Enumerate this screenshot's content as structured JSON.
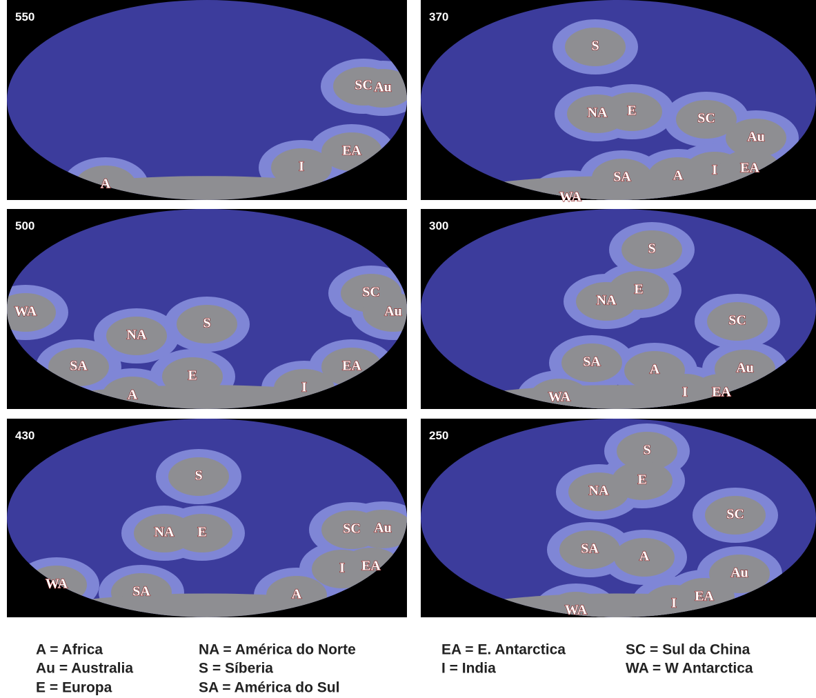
{
  "panels": [
    {
      "age": "550",
      "labels": [
        "SC",
        "Au",
        "EA",
        "I",
        "A"
      ]
    },
    {
      "age": "370",
      "labels": [
        "S",
        "NA",
        "E",
        "SC",
        "Au",
        "SA",
        "A",
        "I",
        "EA",
        "WA"
      ]
    },
    {
      "age": "500",
      "labels": [
        "WA",
        "NA",
        "S",
        "SC",
        "Au",
        "SA",
        "E",
        "EA",
        "A",
        "I"
      ]
    },
    {
      "age": "300",
      "labels": [
        "S",
        "E",
        "NA",
        "SC",
        "SA",
        "A",
        "Au",
        "I",
        "EA",
        "WA"
      ]
    },
    {
      "age": "430",
      "labels": [
        "S",
        "NA",
        "E",
        "SC",
        "Au",
        "I",
        "EA",
        "WA",
        "SA",
        "A"
      ]
    },
    {
      "age": "250",
      "labels": [
        "S",
        "E",
        "NA",
        "SC",
        "SA",
        "A",
        "Au",
        "EA",
        "I",
        "WA"
      ]
    }
  ],
  "legend": [
    [
      "A = Africa",
      "Au = Australia",
      "E = Europa"
    ],
    [
      "NA = América do Norte",
      "S = Síberia",
      "SA = América do Sul"
    ],
    [
      "EA = E. Antarctica",
      "I = India"
    ],
    [
      "SC = Sul da China",
      "WA = W Antarctica"
    ]
  ]
}
